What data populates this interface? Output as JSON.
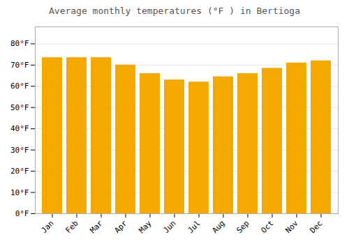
{
  "chart_data": {
    "type": "bar",
    "title": "Average monthly temperatures (°F ) in Bertioga",
    "categories": [
      "Jan",
      "Feb",
      "Mar",
      "Apr",
      "May",
      "Jun",
      "Jul",
      "Aug",
      "Sep",
      "Oct",
      "Nov",
      "Dec"
    ],
    "values": [
      73.5,
      73.5,
      73.5,
      70.0,
      66.0,
      63.0,
      62.0,
      64.5,
      66.0,
      68.5,
      71.0,
      72.0
    ],
    "color": "#F5A800",
    "ylim": [
      0,
      88
    ],
    "yticks": [
      {
        "value": 0,
        "label": "0°F"
      },
      {
        "value": 10,
        "label": "10°F"
      },
      {
        "value": 20,
        "label": "20°F"
      },
      {
        "value": 30,
        "label": "30°F"
      },
      {
        "value": 40,
        "label": "40°F"
      },
      {
        "value": 50,
        "label": "50°F"
      },
      {
        "value": 60,
        "label": "60°F"
      },
      {
        "value": 70,
        "label": "70°F"
      },
      {
        "value": 80,
        "label": "80°F"
      }
    ],
    "grid": true
  }
}
